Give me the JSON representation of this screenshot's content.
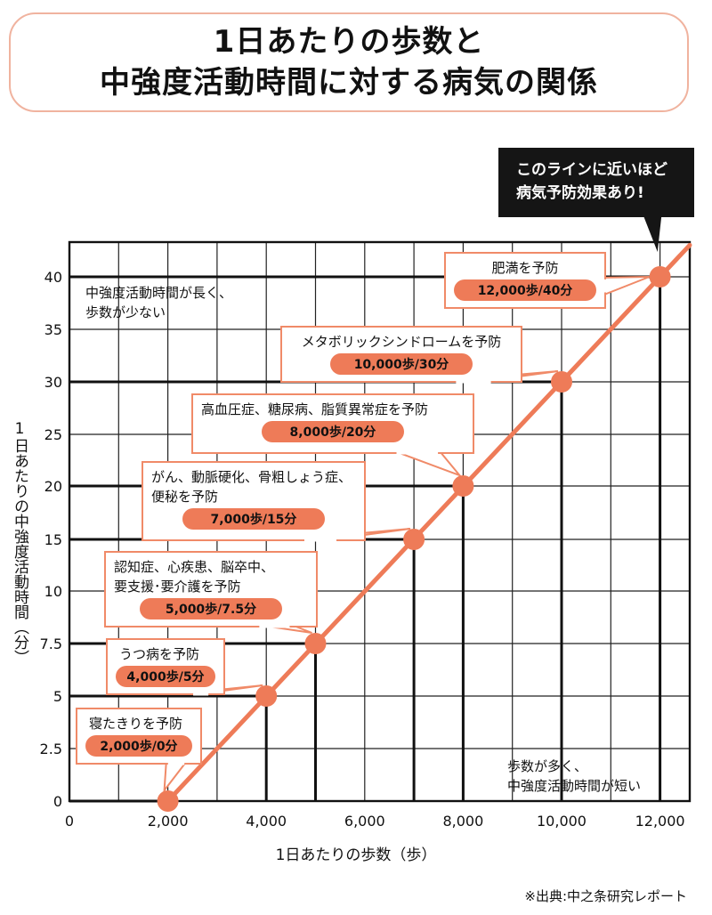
{
  "title": {
    "line1": "1日あたりの歩数と",
    "line2": "中強度活動時間に対する病気の関係"
  },
  "callout": {
    "line1": "このラインに近いほど",
    "line2": "病気予防効果あり!"
  },
  "notes": {
    "top_left_1": "中強度活動時間が長く、",
    "top_left_2": "歩数が少ない",
    "bottom_right_1": "歩数が多く、",
    "bottom_right_2": "中強度活動時間が短い"
  },
  "source": "※出典:中之条研究レポート",
  "chart_data": {
    "type": "line",
    "xlabel": "1日あたりの歩数（歩）",
    "ylabel": "1日あたりの中強度活動時間（分）",
    "x_ticks": [
      0,
      2000,
      4000,
      6000,
      8000,
      10000,
      12000
    ],
    "x_tick_labels": [
      "0",
      "2,000",
      "4,000",
      "6,000",
      "8,000",
      "10,000",
      "12,000"
    ],
    "y_ticks": [
      0,
      2.5,
      5,
      7.5,
      10,
      15,
      20,
      25,
      30,
      35,
      40
    ],
    "y_tick_labels": [
      "0",
      "2.5",
      "5",
      "7.5",
      "10",
      "15",
      "20",
      "25",
      "30",
      "35",
      "40"
    ],
    "xlim": [
      0,
      12500
    ],
    "line_color": "#ee7b58",
    "points": [
      {
        "x": 2000,
        "y": 0,
        "condition": [
          "寝たきりを予防"
        ],
        "value_label": "2,000歩/0分"
      },
      {
        "x": 4000,
        "y": 5,
        "condition": [
          "うつ病を予防"
        ],
        "value_label": "4,000歩/5分"
      },
      {
        "x": 5000,
        "y": 7.5,
        "condition": [
          "認知症、心疾患、脳卒中、",
          "要支援･要介護を予防"
        ],
        "value_label": "5,000歩/7.5分"
      },
      {
        "x": 7000,
        "y": 15,
        "condition": [
          "がん、動脈硬化、骨粗しょう症、",
          "便秘を予防"
        ],
        "value_label": "7,000歩/15分"
      },
      {
        "x": 8000,
        "y": 20,
        "condition": [
          "高血圧症、糖尿病、脂質異常症を予防"
        ],
        "value_label": "8,000歩/20分"
      },
      {
        "x": 10000,
        "y": 30,
        "condition": [
          "メタボリックシンドロームを予防"
        ],
        "value_label": "10,000歩/30分"
      },
      {
        "x": 12000,
        "y": 40,
        "condition": [
          "肥満を予防"
        ],
        "value_label": "12,000歩/40分"
      }
    ]
  }
}
